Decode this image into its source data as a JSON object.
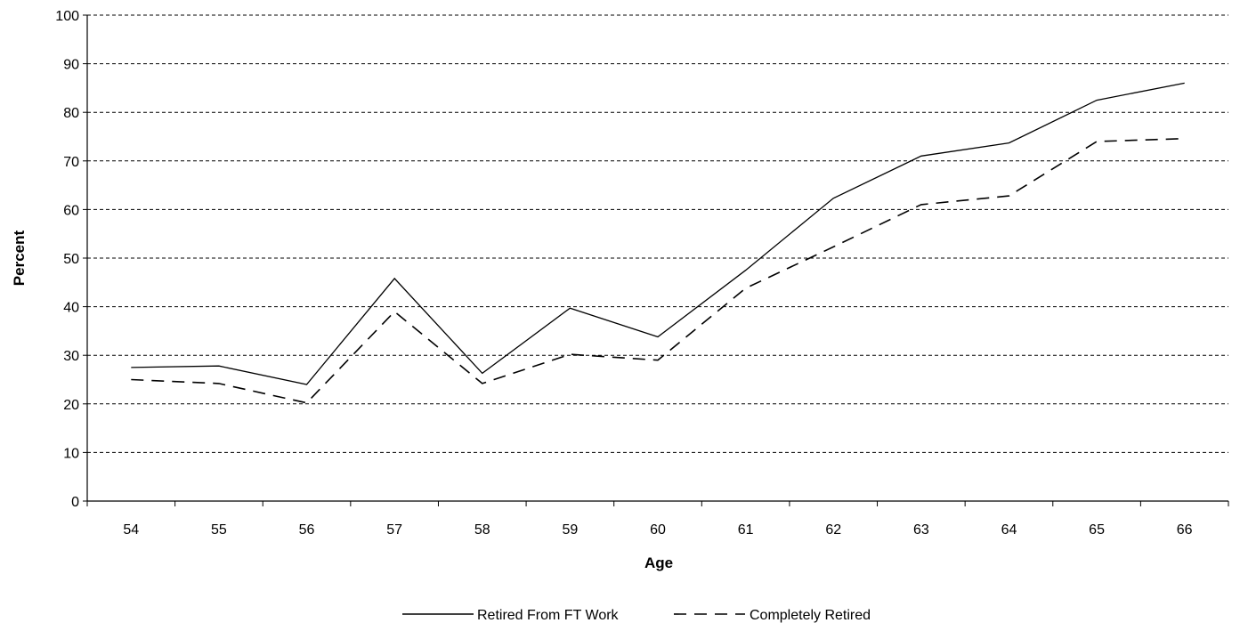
{
  "chart_data": {
    "type": "line",
    "title": "",
    "xlabel": "Age",
    "ylabel": "Percent",
    "x": [
      54,
      55,
      56,
      57,
      58,
      59,
      60,
      61,
      62,
      63,
      64,
      65,
      66
    ],
    "ylim": [
      0,
      100
    ],
    "yticks": [
      0,
      10,
      20,
      30,
      40,
      50,
      60,
      70,
      80,
      90,
      100
    ],
    "grid": "horizontal dashed",
    "legend_position": "bottom",
    "series": [
      {
        "name": "Retired From FT Work",
        "style": "solid",
        "color": "#000000",
        "values": [
          27.5,
          27.8,
          24.0,
          45.8,
          26.3,
          39.7,
          33.8,
          47.5,
          62.3,
          71.0,
          73.7,
          82.5,
          86.0
        ]
      },
      {
        "name": "Completely Retired",
        "style": "dashed",
        "color": "#000000",
        "values": [
          25.0,
          24.2,
          20.2,
          39.0,
          24.2,
          30.2,
          29.0,
          43.8,
          52.3,
          61.0,
          62.8,
          74.0,
          74.6
        ]
      }
    ]
  }
}
